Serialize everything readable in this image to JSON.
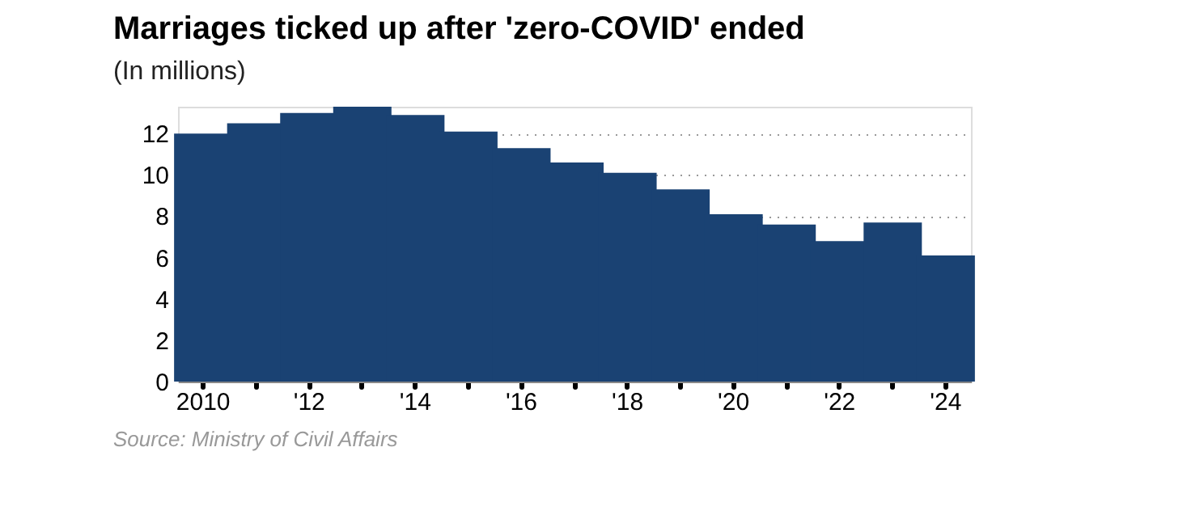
{
  "chart_data": {
    "type": "bar",
    "title": "Marriages ticked up after 'zero-COVID' ended",
    "subtitle": "(In millions)",
    "categories": [
      "2010",
      null,
      "'12",
      null,
      "'14",
      null,
      "'16",
      null,
      "'18",
      null,
      "'20",
      null,
      "'22",
      null,
      "'24"
    ],
    "values": [
      12.0,
      12.5,
      13.0,
      13.3,
      12.9,
      12.1,
      11.3,
      10.6,
      10.1,
      9.3,
      8.1,
      7.6,
      6.8,
      7.7,
      6.1
    ],
    "color": "#1a4273",
    "ylim": [
      0,
      13.3
    ],
    "yticks": [
      0,
      2,
      4,
      6,
      8,
      10,
      12
    ],
    "grid": "y",
    "annotations": [
      "Source: Ministry of Civil Affairs"
    ]
  }
}
